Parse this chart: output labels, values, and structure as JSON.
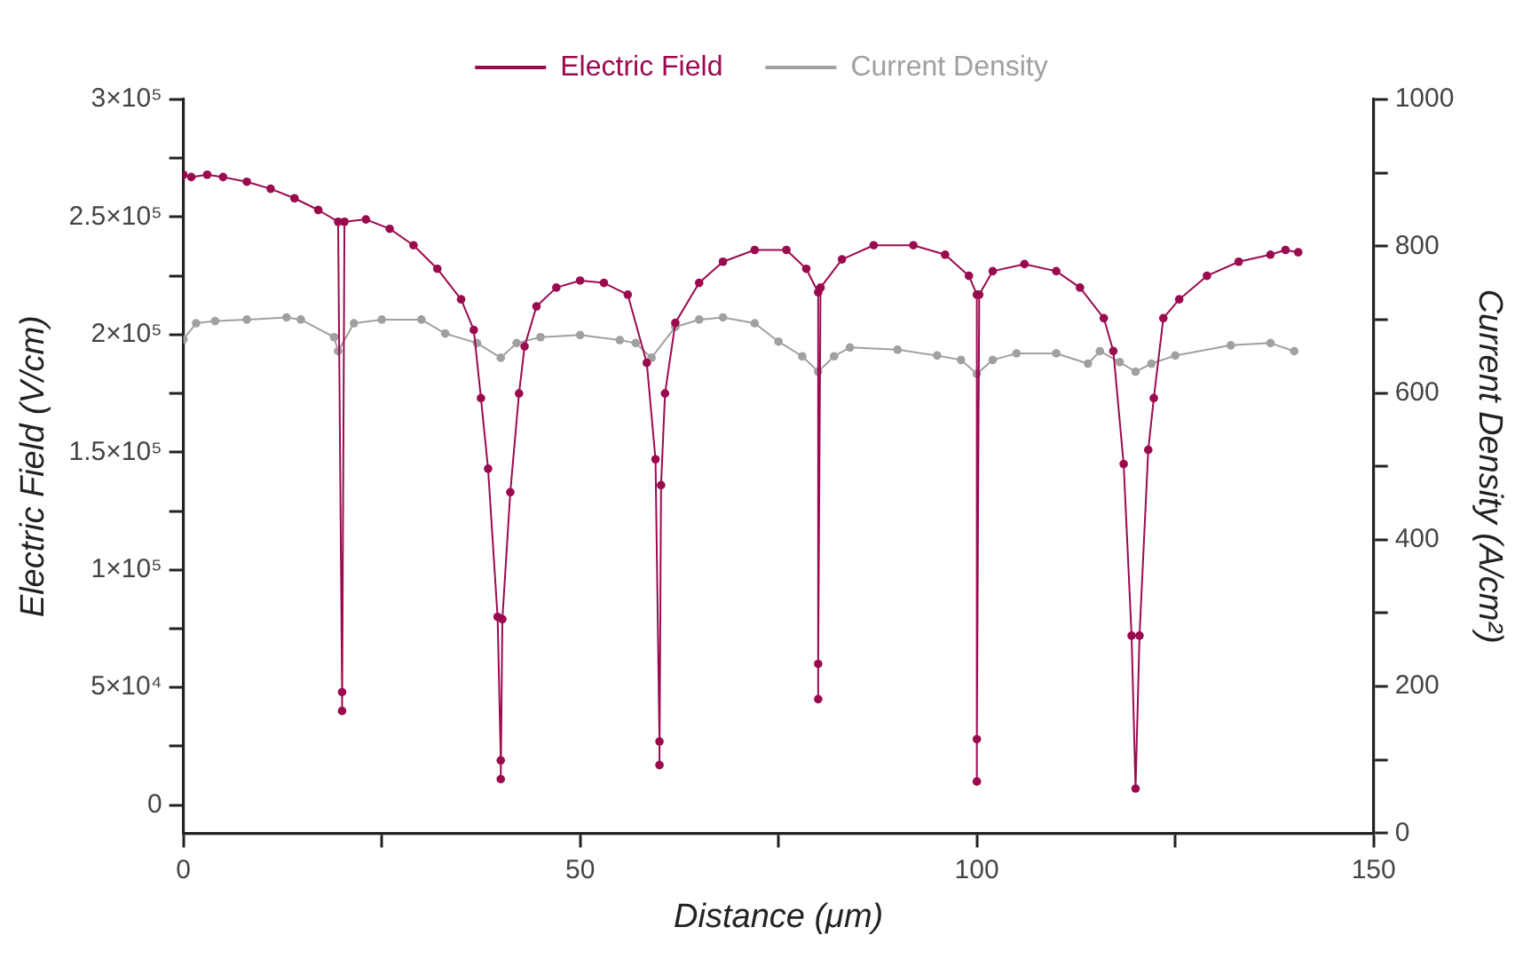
{
  "chart_data": {
    "type": "line",
    "xlabel": "Distance (μm)",
    "ylabel": "Electric Field (V/cm)",
    "y2label": "Current Density (A/cm²)",
    "xlim": [
      0,
      150
    ],
    "xticks": [
      0,
      {
        "value": 25,
        "label": null
      },
      50,
      {
        "value": 75,
        "label": null
      },
      100,
      {
        "value": 125,
        "label": null
      },
      150
    ],
    "ylim": [
      -12000,
      300000
    ],
    "yticks": [
      {
        "value": 0,
        "label": "0"
      },
      {
        "value": 25000,
        "label": null
      },
      {
        "value": 50000,
        "label": "5×10⁴"
      },
      {
        "value": 75000,
        "label": null
      },
      {
        "value": 100000,
        "label": "1×10⁵"
      },
      {
        "value": 125000,
        "label": null
      },
      {
        "value": 150000,
        "label": "1.5×10⁵"
      },
      {
        "value": 175000,
        "label": null
      },
      {
        "value": 200000,
        "label": "2×10⁵"
      },
      {
        "value": 225000,
        "label": null
      },
      {
        "value": 250000,
        "label": "2.5×10⁵"
      },
      {
        "value": 275000,
        "label": null
      },
      {
        "value": 300000,
        "label": "3×10⁵"
      }
    ],
    "y2lim": [
      0,
      1000
    ],
    "y2ticks": [
      0,
      {
        "value": 100,
        "label": null
      },
      200,
      {
        "value": 300,
        "label": null
      },
      400,
      {
        "value": 500,
        "label": null
      },
      600,
      {
        "value": 700,
        "label": null
      },
      800,
      {
        "value": 900,
        "label": null
      },
      1000
    ],
    "legend": "top",
    "grid": false,
    "marker": "circle",
    "line_style": "solid",
    "series": [
      {
        "name": "Electric Field",
        "color": "#9b0a4f",
        "x": [
          0,
          1,
          3,
          5,
          8,
          11,
          14,
          17,
          19.5,
          20,
          20,
          20.3,
          23,
          26,
          29,
          32,
          35,
          36.6,
          37.5,
          38.4,
          39.6,
          40,
          40,
          40.2,
          41.2,
          42.3,
          43,
          44.5,
          47,
          50,
          53,
          56,
          58.4,
          59.5,
          60,
          60,
          60.2,
          60.7,
          62,
          65,
          68,
          72,
          76,
          78.5,
          80,
          80,
          80,
          80.3,
          83,
          87,
          92,
          96,
          99,
          100,
          100,
          100,
          100.3,
          102,
          106,
          110,
          113,
          116,
          117.2,
          118.5,
          119.5,
          120,
          120.5,
          121.6,
          122.3,
          123.5,
          125.5,
          129,
          133,
          137,
          138.9,
          140.5
        ],
        "values": [
          268000,
          267000,
          268000,
          267000,
          265000,
          262000,
          258000,
          253000,
          248000,
          48000,
          40000,
          248000,
          249000,
          245000,
          238000,
          228000,
          215000,
          202000,
          173000,
          143000,
          80000,
          19000,
          11000,
          79000,
          133000,
          175000,
          195000,
          212000,
          220000,
          223000,
          222000,
          217000,
          188000,
          147000,
          27000,
          17000,
          136000,
          175000,
          205000,
          222000,
          231000,
          236000,
          236000,
          228000,
          218000,
          45000,
          60000,
          220000,
          232000,
          238000,
          238000,
          234000,
          225000,
          217000,
          10000,
          28000,
          217000,
          227000,
          230000,
          227000,
          220000,
          207000,
          193000,
          145000,
          72000,
          7000,
          72000,
          151000,
          173000,
          207000,
          215000,
          225000,
          231000,
          234000,
          236000,
          235000
        ]
      },
      {
        "name": "Current Density",
        "color": "#a0a0a0",
        "axis": "y2",
        "x": [
          0,
          1.6,
          4,
          8,
          13,
          14.8,
          19,
          19.5,
          21.5,
          25,
          30,
          33,
          37,
          40,
          42,
          45,
          50,
          55,
          57,
          59,
          62,
          65,
          68,
          72,
          75,
          78,
          80,
          82,
          84,
          90,
          95,
          98,
          100,
          102,
          105,
          110,
          114,
          115.5,
          118,
          120,
          122,
          125,
          132,
          137,
          140
        ],
        "values": [
          673,
          695,
          698,
          700,
          703,
          700,
          676,
          657,
          695,
          700,
          700,
          681,
          668,
          648,
          668,
          676,
          679,
          672,
          668,
          648,
          690,
          700,
          703,
          695,
          670,
          650,
          629,
          650,
          662,
          659,
          651,
          645,
          626,
          645,
          654,
          654,
          640,
          657,
          642,
          629,
          640,
          651,
          665,
          668,
          657
        ]
      }
    ]
  }
}
